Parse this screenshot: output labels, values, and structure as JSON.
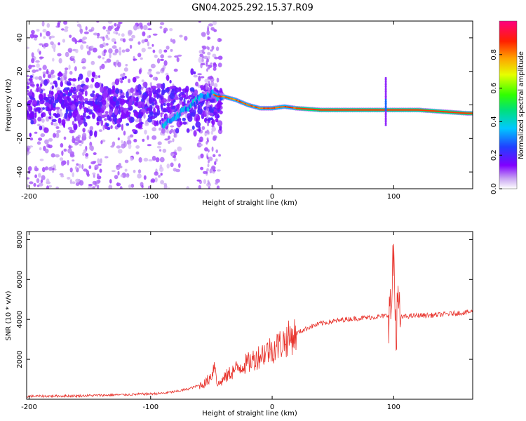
{
  "title": "GN04.2025.292.15.37.R09",
  "chart_data": [
    {
      "type": "heatmap",
      "xlabel": "Height of straight line (km)",
      "ylabel": "Frequency (Hz)",
      "xlim": [
        -202,
        165
      ],
      "ylim": [
        -50,
        50
      ],
      "x_ticks": [
        -200,
        -100,
        0,
        100
      ],
      "x_tick_labels": [
        "-200",
        "-100",
        "0",
        "100"
      ],
      "y_ticks": [
        40,
        20,
        0,
        -20,
        -40
      ],
      "y_tick_labels": [
        "40",
        "20",
        "0",
        "-20",
        "-40"
      ],
      "colorbar": {
        "label": "Normalized spectral amplitude",
        "range": [
          0,
          1
        ],
        "ticks": [
          0,
          0.2,
          0.4,
          0.6,
          0.8
        ],
        "tick_labels": [
          "0.0",
          "0.2",
          "0.4",
          "0.6",
          "0.8"
        ],
        "colormap": "rainbow: white-purple-blue-cyan-green-yellow-orange-red-magenta"
      },
      "ridge": {
        "description_points_x": [
          -90,
          -80,
          -70,
          -60,
          -50,
          -45,
          -40,
          -30,
          -20,
          -10,
          0,
          10,
          20,
          40,
          60,
          80,
          100,
          120,
          140,
          160
        ],
        "frequency": [
          -12,
          -7,
          -2,
          4,
          7,
          5,
          5,
          3,
          0,
          -2,
          -2,
          -1,
          -2,
          -3,
          -3,
          -3,
          -3,
          -3,
          -4,
          -5
        ]
      },
      "grid": false
    },
    {
      "type": "line",
      "xlabel": "Height of straight line (km)",
      "ylabel": "SNR (10 * v/v)",
      "xlim": [
        -202,
        165
      ],
      "ylim": [
        0,
        8400
      ],
      "x_ticks": [
        -200,
        -100,
        0,
        100
      ],
      "x_tick_labels": [
        "-200",
        "-100",
        "0",
        "100"
      ],
      "y_ticks": [
        2000,
        4000,
        6000,
        8000
      ],
      "y_tick_labels": [
        "2000",
        "4000",
        "6000",
        "8000"
      ],
      "series": [
        {
          "color": "#e8322b",
          "x": [
            -202,
            -180,
            -160,
            -140,
            -120,
            -100,
            -90,
            -80,
            -70,
            -60,
            -55,
            -50,
            -47,
            -45,
            -40,
            -35,
            -30,
            -25,
            -20,
            -15,
            -10,
            -5,
            0,
            5,
            10,
            15,
            20,
            25,
            30,
            40,
            50,
            60,
            70,
            80,
            90,
            95,
            98,
            100,
            101,
            102,
            103,
            104,
            106,
            110,
            120,
            130,
            140,
            150,
            160,
            165
          ],
          "y": [
            150,
            160,
            170,
            200,
            230,
            270,
            300,
            380,
            500,
            700,
            800,
            1200,
            1800,
            700,
            1000,
            1300,
            1500,
            1700,
            1800,
            2000,
            2200,
            2400,
            2500,
            2700,
            2900,
            3100,
            3300,
            3450,
            3600,
            3800,
            3900,
            4000,
            4050,
            4100,
            4150,
            4200,
            4500,
            7500,
            5000,
            3000,
            5500,
            4000,
            4100,
            4150,
            4200,
            4200,
            4250,
            4300,
            4350,
            4400
          ]
        }
      ],
      "grid": false
    }
  ]
}
